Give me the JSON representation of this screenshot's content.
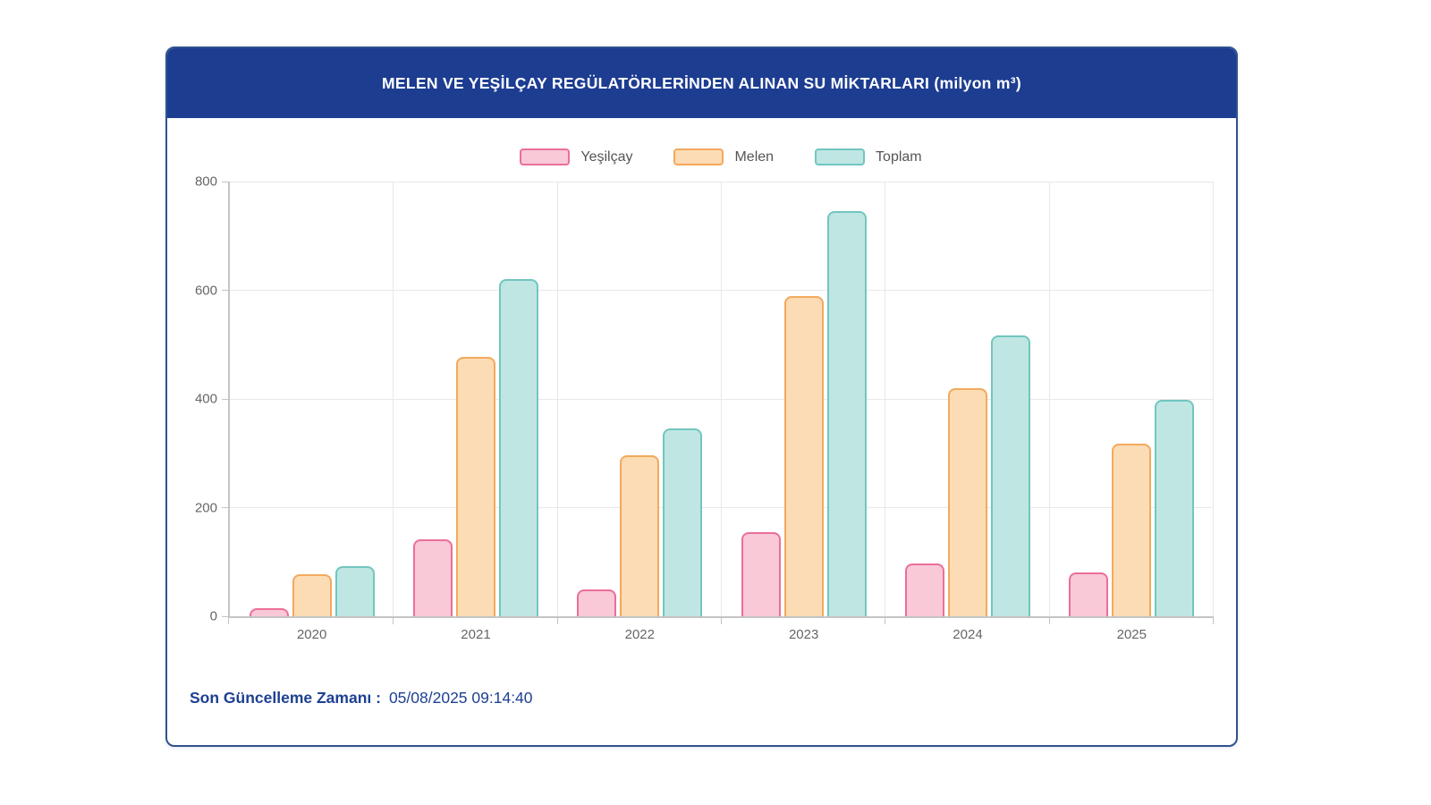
{
  "header": {
    "title": "MELEN VE YEŞİLÇAY REGÜLATÖRLERİNDEN ALINAN SU MİKTARLARI (milyon m³)"
  },
  "footer": {
    "label": "Son Güncelleme Zamanı :",
    "value": "05/08/2025 09:14:40"
  },
  "colors": {
    "header_bg": "#1d3d91",
    "card_border": "#30528f",
    "footer_text": "#1d4091",
    "grid_line": "#e8e8e8",
    "axis_line": "#c4c4c4",
    "tick_text": "#666666",
    "legend_text": "#555555",
    "series": [
      {
        "name": "Yeşilçay",
        "fill": "#f9c9d8",
        "border": "#ec6f99"
      },
      {
        "name": "Melen",
        "fill": "#fcdcb5",
        "border": "#f3a95c"
      },
      {
        "name": "Toplam",
        "fill": "#bfe6e3",
        "border": "#72c6c0"
      }
    ]
  },
  "chart_data": {
    "type": "bar",
    "title": "MELEN VE YEŞİLÇAY REGÜLATÖRLERİNDEN ALINAN SU MİKTARLARI (milyon m³)",
    "categories": [
      "2020",
      "2021",
      "2022",
      "2023",
      "2024",
      "2025"
    ],
    "series": [
      {
        "name": "Yeşilçay",
        "values": [
          15,
          142,
          50,
          155,
          97,
          80
        ]
      },
      {
        "name": "Melen",
        "values": [
          77,
          478,
          296,
          590,
          420,
          318
        ]
      },
      {
        "name": "Toplam",
        "values": [
          92,
          620,
          346,
          745,
          517,
          398
        ]
      }
    ],
    "xlabel": "",
    "ylabel": "",
    "ylim": [
      0,
      800
    ],
    "yticks": [
      0,
      200,
      400,
      600,
      800
    ],
    "legend_position": "top-center",
    "grid": true
  }
}
